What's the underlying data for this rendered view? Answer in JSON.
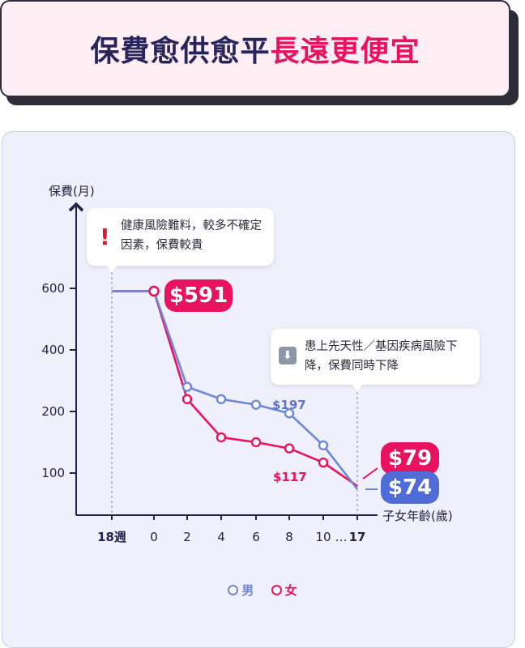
{
  "header": {
    "title_part1": "保費愈供愈平",
    "title_part2": "長遠更便宜"
  },
  "chart_data": {
    "type": "line",
    "ylabel": "保費(月)",
    "xlabel": "子女年齡(歲)",
    "y_ticks": [
      "600",
      "400",
      "200",
      "100"
    ],
    "x_ticks": [
      "18週",
      "0",
      "2",
      "4",
      "6",
      "8",
      "10",
      "…",
      "17"
    ],
    "series": [
      {
        "name": "男",
        "color": "#6e86d6",
        "points": [
          [
            "18週",
            591
          ],
          [
            "0",
            591
          ],
          [
            "2",
            280
          ],
          [
            "4",
            240
          ],
          [
            "6",
            222
          ],
          [
            "8",
            197
          ],
          [
            "10",
            145
          ],
          [
            "17",
            74
          ]
        ]
      },
      {
        "name": "女",
        "color": "#e8125f",
        "points": [
          [
            "18週",
            591
          ],
          [
            "0",
            591
          ],
          [
            "2",
            240
          ],
          [
            "4",
            158
          ],
          [
            "6",
            150
          ],
          [
            "8",
            140
          ],
          [
            "10",
            117
          ],
          [
            "17",
            79
          ]
        ]
      }
    ],
    "annotations": {
      "start_value": "$591",
      "male_mid": "$197",
      "female_mid": "$117",
      "female_end": "$79",
      "male_end": "$74"
    },
    "legend": {
      "position": "bottom-center",
      "items": [
        "男",
        "女"
      ]
    }
  },
  "tooltips": {
    "early": {
      "icon": "exclamation-icon",
      "text": "健康風險難料，較多不確定因素，保費較貴"
    },
    "late": {
      "icon": "down-arrow-icon",
      "text": "患上先天性／基因疾病風險下降，保費同時下降"
    }
  }
}
